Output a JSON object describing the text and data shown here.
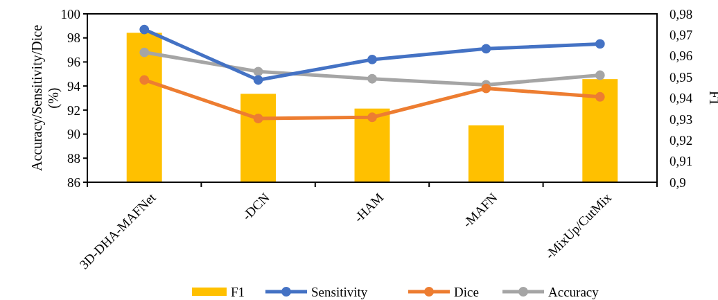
{
  "chart_data": {
    "type": "line",
    "ylabel": "Accuracy/Sensitivity/Dice (%)",
    "y2label": "F1",
    "categories": [
      "3D-DHA-MAFNet",
      "-DCN",
      "-HAM",
      "-MAFN",
      "-MixUp/CutMix"
    ],
    "series": [
      {
        "name": "F1",
        "type": "bar",
        "axis": "y2",
        "color": "#ffc000",
        "values": [
          0.971,
          0.942,
          0.935,
          0.927,
          0.949
        ]
      },
      {
        "name": "Sensitivity",
        "color": "#4472c4",
        "values": [
          98.7,
          94.5,
          96.2,
          97.1,
          97.5
        ]
      },
      {
        "name": "Dice",
        "color": "#ed7d31",
        "values": [
          94.5,
          91.3,
          91.4,
          93.8,
          93.1
        ]
      },
      {
        "name": "Accuracy",
        "color": "#a5a5a5",
        "values": [
          96.8,
          95.2,
          94.6,
          94.1,
          94.9
        ]
      }
    ],
    "ylim": [
      86,
      100
    ],
    "yticks": [
      86,
      88,
      90,
      92,
      94,
      96,
      98,
      100
    ],
    "y2lim": [
      0.9,
      0.98
    ],
    "y2ticks": [
      {
        "value": 0.9,
        "label": "0,9"
      },
      {
        "value": 0.91,
        "label": "0,91"
      },
      {
        "value": 0.92,
        "label": "0,92"
      },
      {
        "value": 0.93,
        "label": "0,93"
      },
      {
        "value": 0.94,
        "label": "0,94"
      },
      {
        "value": 0.95,
        "label": "0,95"
      },
      {
        "value": 0.96,
        "label": "0,96"
      },
      {
        "value": 0.97,
        "label": "0,97"
      },
      {
        "value": 0.98,
        "label": "0,98"
      }
    ],
    "marker": "circle",
    "legend": "bottom",
    "grid": false
  }
}
